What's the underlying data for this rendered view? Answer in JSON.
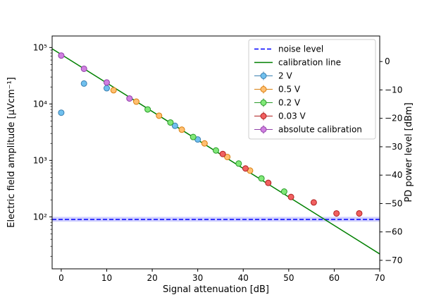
{
  "chart_data": {
    "type": "scatter",
    "xlabel": "Signal attenuation [dB]",
    "ylabel_left": "Electric field amplitude [μVcm⁻¹]",
    "ylabel_right": "PD power level [dBm]",
    "xlim": [
      -2,
      70
    ],
    "ylim_left": [
      12,
      160000
    ],
    "y_scale_left": "log",
    "ylim_right": [
      -73,
      9
    ],
    "x_ticks": [
      0,
      10,
      20,
      30,
      40,
      50,
      60,
      70
    ],
    "x_tick_labels": [
      "0",
      "10",
      "20",
      "30",
      "40",
      "50",
      "60",
      "70"
    ],
    "y_ticks_left": [
      100,
      1000,
      10000,
      100000
    ],
    "y_tick_labels_left": [
      "10²",
      "10³",
      "10⁴",
      "10⁵"
    ],
    "y_ticks_right": [
      0,
      -10,
      -20,
      -30,
      -40,
      -50,
      -60,
      -70
    ],
    "y_tick_labels_right": [
      "0",
      "−10",
      "−20",
      "−30",
      "−40",
      "−50",
      "−60",
      "−70"
    ],
    "legend_position": "top-right",
    "noise_level": {
      "name": "noise level",
      "value": 90,
      "band": [
        82,
        100
      ],
      "color": "#0000ff",
      "band_color": "#c8c8ff"
    },
    "calibration_line": {
      "name": "calibration line",
      "x": [
        -2,
        70
      ],
      "y": [
        95000,
        22
      ],
      "color": "#008000"
    },
    "series": [
      {
        "name": "2 V",
        "fill": "#70c0ee",
        "edge": "#3a7fb0",
        "x": [
          0,
          5,
          10,
          25,
          30
        ],
        "y": [
          7000,
          23000,
          19000,
          4100,
          2350
        ]
      },
      {
        "name": "0.5 V",
        "fill": "#ffbf70",
        "edge": "#d97f10",
        "x": [
          11.5,
          16.5,
          21.5,
          26.5,
          31.5,
          36.5,
          41.5
        ],
        "y": [
          17500,
          11000,
          6200,
          3500,
          2000,
          1150,
          660
        ]
      },
      {
        "name": "0.2 V",
        "fill": "#80e878",
        "edge": "#2a9a2a",
        "x": [
          19,
          24,
          29,
          34,
          39,
          44,
          49
        ],
        "y": [
          8000,
          4700,
          2600,
          1500,
          880,
          480,
          280
        ]
      },
      {
        "name": "0.03 V",
        "fill": "#f06060",
        "edge": "#b02020",
        "x": [
          35.5,
          40.5,
          45.5,
          50.5,
          55.5,
          60.5,
          65.5
        ],
        "y": [
          1300,
          720,
          400,
          225,
          180,
          115,
          115
        ]
      },
      {
        "name": "absolute calibration",
        "fill": "#d080e0",
        "edge": "#9040a8",
        "x": [
          0,
          5,
          10,
          15
        ],
        "y": [
          72000,
          42000,
          24000,
          12500
        ]
      }
    ]
  }
}
